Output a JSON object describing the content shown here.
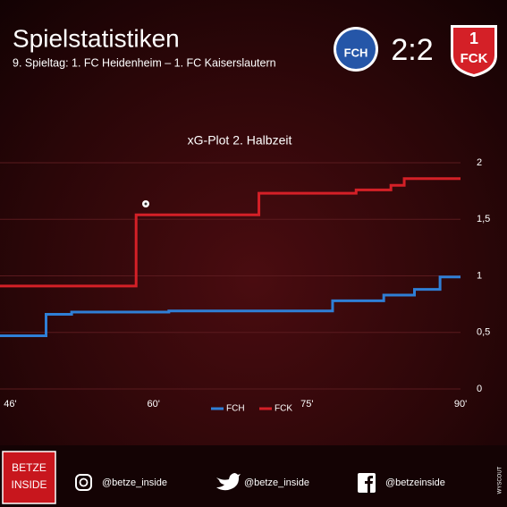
{
  "header": {
    "title": "Spielstatistiken",
    "subtitle": "9. Spieltag: 1. FC Heidenheim – 1. FC Kaiserslautern",
    "home_logo": "FCH",
    "score": "2:2",
    "away_logo_number": "1",
    "away_logo": "FCK"
  },
  "chart_data": {
    "type": "line",
    "step": true,
    "title": "xG-Plot 2. Halbzeit",
    "xlim": [
      45,
      90
    ],
    "xticks": [
      {
        "value": 46,
        "label": "46'"
      },
      {
        "value": 60,
        "label": "60'"
      },
      {
        "value": 75,
        "label": "75'"
      },
      {
        "value": 90,
        "label": "90'"
      }
    ],
    "ylim": [
      0,
      2
    ],
    "yticks": [
      0,
      {
        "value": 0.5,
        "label": "0,5"
      },
      1,
      {
        "value": 1.5,
        "label": "1,5"
      },
      2
    ],
    "grid": true,
    "series": [
      {
        "name": "FCH",
        "color": "#2f7fd6",
        "x": [
          45,
          49.5,
          52,
          61.5,
          77.5,
          82.5,
          85.5,
          88,
          90
        ],
        "values": [
          0.47,
          0.66,
          0.68,
          0.69,
          0.78,
          0.83,
          0.88,
          0.99,
          0.99
        ]
      },
      {
        "name": "FCK",
        "color": "#d42027",
        "x": [
          45,
          58.3,
          70.3,
          79.8,
          83.2,
          84.5,
          90
        ],
        "values": [
          0.91,
          1.54,
          1.73,
          1.76,
          1.8,
          1.86,
          1.86
        ]
      }
    ],
    "legend": "bottom"
  },
  "footer": {
    "brand": [
      "BETZE",
      "INSIDE"
    ],
    "instagram": "@betze_inside",
    "twitter": "@betze_inside",
    "facebook": "@betzeinside",
    "source": "WYSCOUT"
  }
}
